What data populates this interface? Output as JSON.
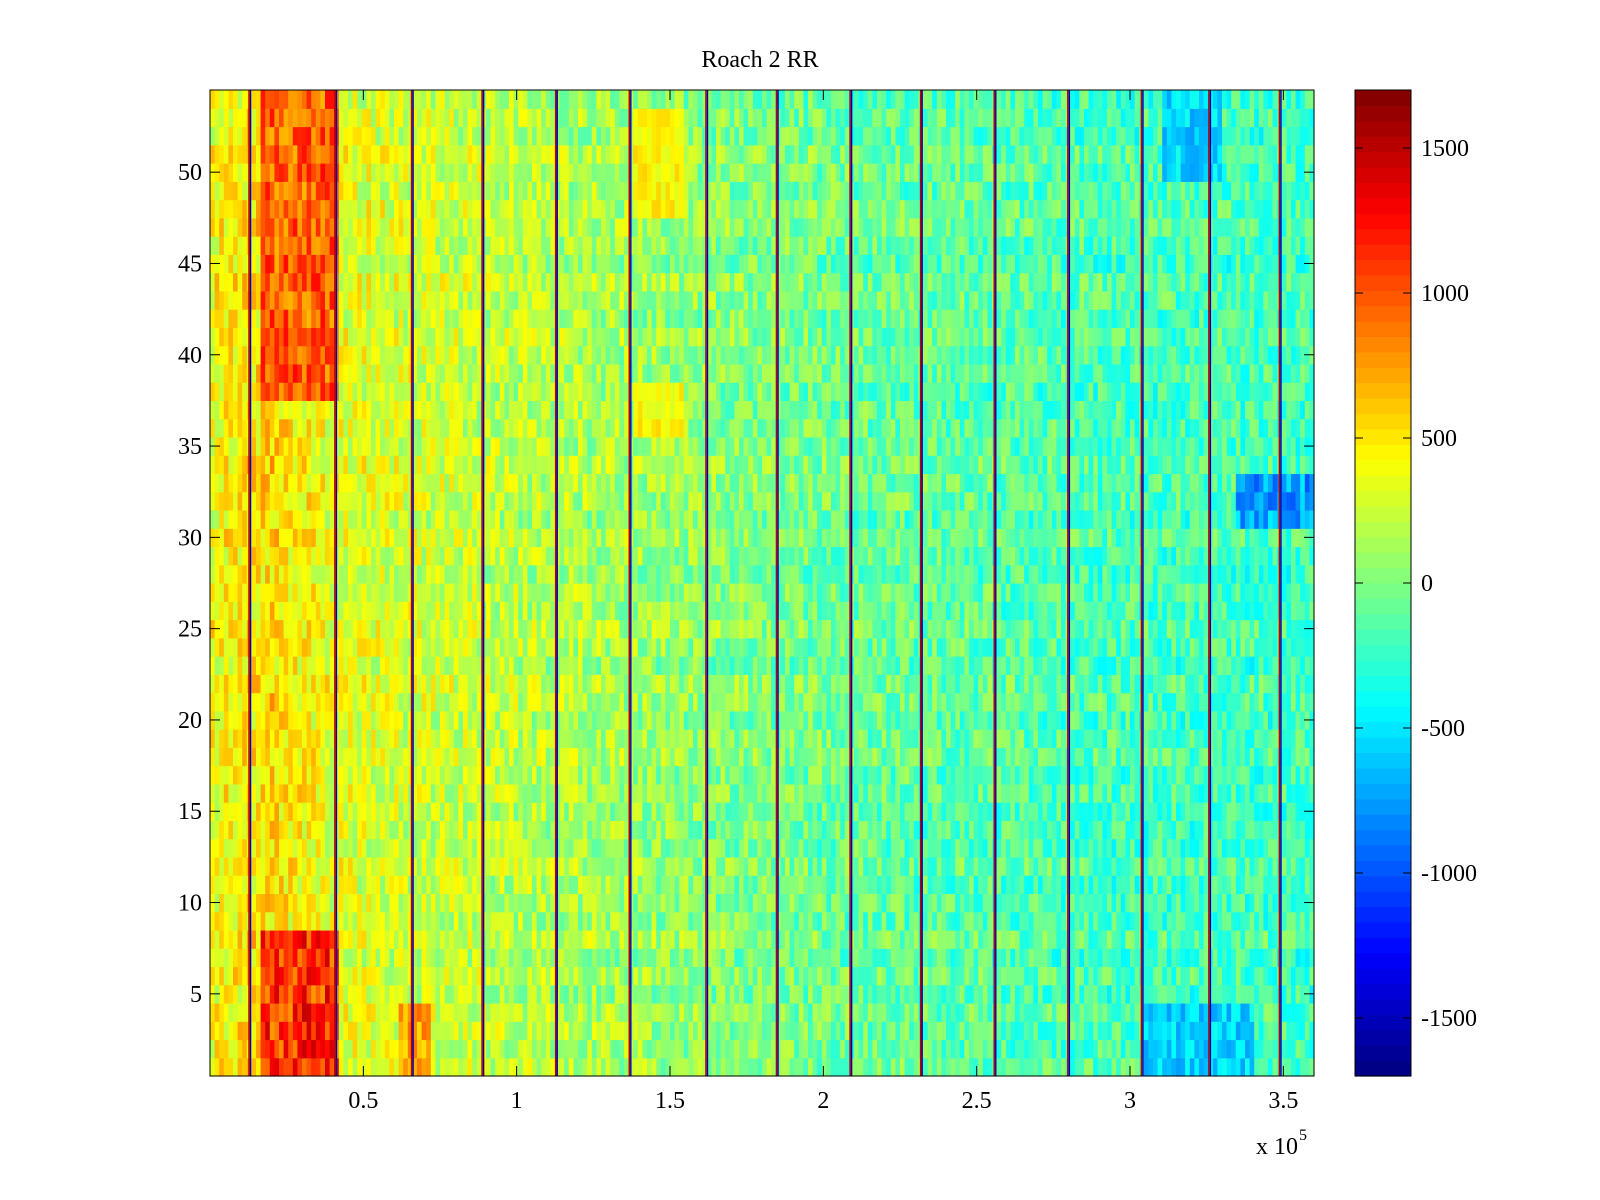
{
  "chart_data": {
    "type": "heatmap",
    "title": "Roach 2 RR",
    "xlabel": "",
    "ylabel": "",
    "x_multiplier_label": "x 10",
    "x_multiplier_exponent": "5",
    "xlim": [
      0,
      3.6
    ],
    "ylim": [
      0.5,
      54.5
    ],
    "x_ticks": [
      0.5,
      1,
      1.5,
      2,
      2.5,
      3,
      3.5
    ],
    "x_tick_labels": [
      "0.5",
      "1",
      "1.5",
      "2",
      "2.5",
      "3",
      "3.5"
    ],
    "y_ticks": [
      5,
      10,
      15,
      20,
      25,
      30,
      35,
      40,
      45,
      50
    ],
    "y_tick_labels": [
      "5",
      "10",
      "15",
      "20",
      "25",
      "30",
      "35",
      "40",
      "45",
      "50"
    ],
    "rows": 54,
    "colormap": "jet",
    "colorbar": {
      "clim": [
        -1700,
        1700
      ],
      "ticks": [
        -1500,
        -1000,
        -500,
        0,
        500,
        1000,
        1500
      ],
      "tick_labels": [
        "-1500",
        "-1000",
        "-500",
        "0",
        "500",
        "1000",
        "1500"
      ]
    },
    "overall_trend": [
      {
        "x": 0.0,
        "value": 400
      },
      {
        "x": 0.2,
        "value": 550
      },
      {
        "x": 0.4,
        "value": 350
      },
      {
        "x": 0.8,
        "value": 250
      },
      {
        "x": 1.2,
        "value": 150
      },
      {
        "x": 1.6,
        "value": 50
      },
      {
        "x": 2.0,
        "value": -50
      },
      {
        "x": 2.5,
        "value": -120
      },
      {
        "x": 3.0,
        "value": -180
      },
      {
        "x": 3.6,
        "value": -200
      }
    ],
    "hot_regions": [
      {
        "x_range": [
          0.17,
          0.42
        ],
        "y_range": [
          0.5,
          8
        ],
        "value": 1400
      },
      {
        "x_range": [
          0.17,
          0.42
        ],
        "y_range": [
          38,
          54.5
        ],
        "value": 1200
      },
      {
        "x_range": [
          0.62,
          0.72
        ],
        "y_range": [
          0.5,
          4
        ],
        "value": 900
      },
      {
        "x_range": [
          1.38,
          1.55
        ],
        "y_range": [
          48,
          53
        ],
        "value": 550
      },
      {
        "x_range": [
          1.38,
          1.55
        ],
        "y_range": [
          36,
          38
        ],
        "value": 550
      }
    ],
    "cold_regions": [
      {
        "x_range": [
          3.05,
          3.4
        ],
        "y_range": [
          0.5,
          4
        ],
        "value": -700
      },
      {
        "x_range": [
          3.1,
          3.3
        ],
        "y_range": [
          50,
          54
        ],
        "value": -700
      },
      {
        "x_range": [
          3.35,
          3.6
        ],
        "y_range": [
          31,
          33
        ],
        "value": -900
      }
    ],
    "vertical_stripes_x": [
      0.13,
      0.41,
      0.66,
      0.89,
      1.13,
      1.37,
      1.62,
      1.85,
      2.09,
      2.32,
      2.56,
      2.8,
      3.04,
      3.26,
      3.49
    ]
  }
}
